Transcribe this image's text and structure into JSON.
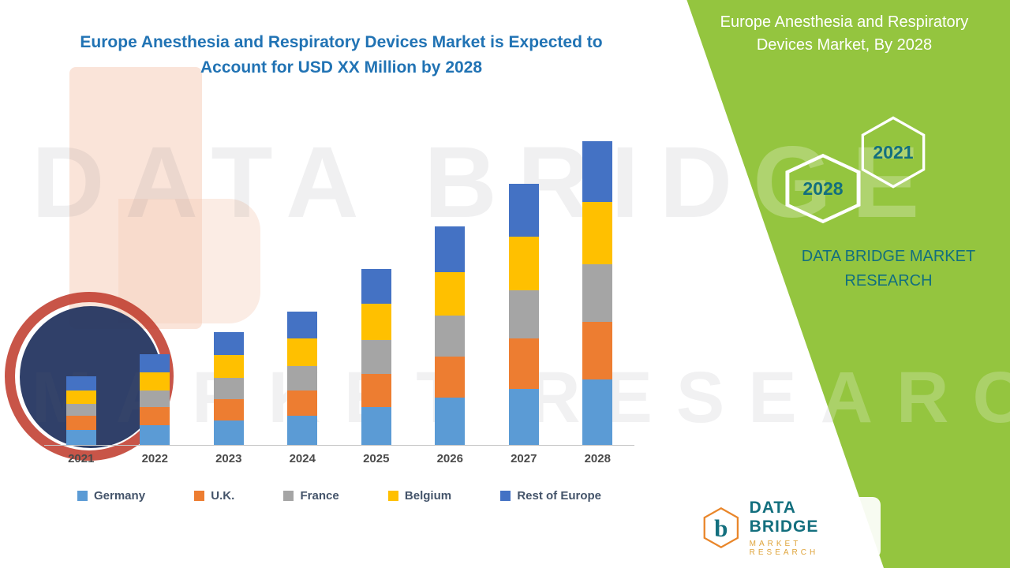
{
  "chart_title": "Europe Anesthesia and Respiratory Devices Market is Expected to Account for USD XX Million by 2028",
  "side_panel": {
    "heading": "Europe Anesthesia and Respiratory Devices Market, By 2028",
    "badge_2028": "2028",
    "badge_2021": "2021",
    "brand_text": "DATA BRIDGE MARKET RESEARCH"
  },
  "watermark": {
    "line1": "DATA BRIDGE",
    "line2": "MARKET RESEARCH"
  },
  "footer_logo": {
    "brand": "DATA BRIDGE",
    "tagline": "MARKET RESEARCH",
    "b_glyph": "b"
  },
  "colors": {
    "green_panel": "#94C53F",
    "teal": "#136F7E",
    "title_blue": "#2173B4",
    "axis": "#C6C6C6"
  },
  "chart_data": {
    "type": "bar",
    "stacked": true,
    "title": "Europe Anesthesia and Respiratory Devices Market is Expected to Account for USD XX Million by 2028",
    "categories": [
      "2021",
      "2022",
      "2023",
      "2024",
      "2025",
      "2026",
      "2027",
      "2028"
    ],
    "series": [
      {
        "name": "Germany",
        "color": "#5B9BD5",
        "values": [
          5,
          6.5,
          8,
          9.5,
          12.5,
          15.5,
          18.5,
          21.5
        ]
      },
      {
        "name": "U.K.",
        "color": "#ED7D31",
        "values": [
          4.5,
          6,
          7,
          8.5,
          11,
          13.5,
          16.5,
          19
        ]
      },
      {
        "name": "France",
        "color": "#A5A5A5",
        "values": [
          4,
          5.5,
          7,
          8,
          11,
          13.5,
          16,
          19
        ]
      },
      {
        "name": "Belgium",
        "color": "#FFC000",
        "values": [
          4.5,
          6,
          7.5,
          9,
          12,
          14.5,
          17.5,
          20.5
        ]
      },
      {
        "name": "Rest of Europe",
        "color": "#4472C4",
        "values": [
          4.5,
          6,
          7.5,
          9,
          11.5,
          15,
          17.5,
          20
        ]
      }
    ],
    "xlabel": "",
    "ylabel": "",
    "ylim": [
      0,
      100
    ],
    "y_axis_visible": false,
    "grid": false,
    "legend_position": "bottom",
    "note": "No y-axis shown in source; values are relative estimates of USD XX Million totals by country."
  }
}
